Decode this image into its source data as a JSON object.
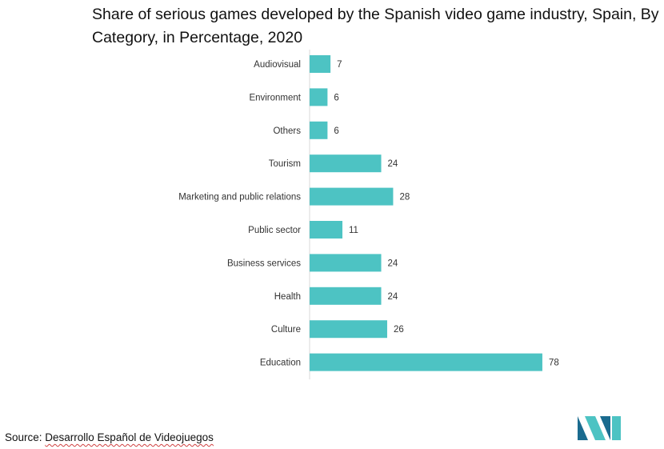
{
  "title": "Share of serious games developed by the Spanish video game industry, Spain, By Category, in Percentage, 2020",
  "source": {
    "prefix": "Source: ",
    "name": "Desarrollo Español de Videojuegos"
  },
  "logo": {
    "icon": "mordor-intelligence-logo-icon"
  },
  "colors": {
    "bar": "#4dc3c3",
    "axis": "#d9d9d9",
    "logo_dark": "#1a6b8f",
    "logo_light": "#4dc3c3"
  },
  "chart_data": {
    "type": "bar",
    "orientation": "horizontal",
    "categories": [
      "Audiovisual",
      "Environment",
      "Others",
      "Tourism",
      "Marketing and public relations",
      "Public sector",
      "Business services",
      "Health",
      "Culture",
      "Education"
    ],
    "values": [
      7,
      6,
      6,
      24,
      28,
      11,
      24,
      24,
      26,
      78
    ],
    "data_labels": [
      "7",
      "6",
      "6",
      "24",
      "28",
      "11",
      "24",
      "24",
      "26",
      "78"
    ],
    "title": "Share of serious games developed by the Spanish video game industry, Spain, By Category, in Percentage, 2020",
    "xlabel": "",
    "ylabel": "",
    "xlim": [
      0,
      100
    ],
    "grid": false,
    "legend": "none"
  }
}
